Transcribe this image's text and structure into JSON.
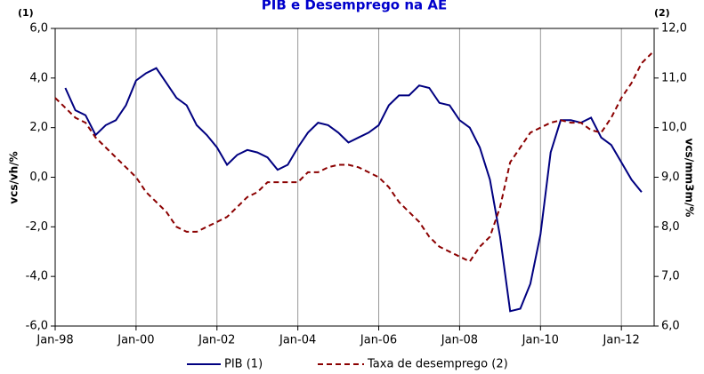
{
  "chart_data": {
    "type": "line",
    "title": "PIB e Desemprego na AE",
    "ylabel": "vcs/vh/%",
    "y2label": "vcs/mm3m/%",
    "y_note": "(1)",
    "y2_note": "(2)",
    "xlim": [
      1998,
      2012.81
    ],
    "xticks": [
      {
        "value": 1998,
        "label": "Jan-98"
      },
      {
        "value": 2000,
        "label": "Jan-00"
      },
      {
        "value": 2002,
        "label": "Jan-02"
      },
      {
        "value": 2004,
        "label": "Jan-04"
      },
      {
        "value": 2006,
        "label": "Jan-06"
      },
      {
        "value": 2008,
        "label": "Jan-08"
      },
      {
        "value": 2010,
        "label": "Jan-10"
      },
      {
        "value": 2012,
        "label": "Jan-12"
      }
    ],
    "ylim": [
      -6,
      6
    ],
    "yticks": [
      {
        "value": -6,
        "label": "-6,0"
      },
      {
        "value": -4,
        "label": "-4,0"
      },
      {
        "value": -2,
        "label": "-2,0"
      },
      {
        "value": 0,
        "label": "0,0"
      },
      {
        "value": 2,
        "label": "2,0"
      },
      {
        "value": 4,
        "label": "4,0"
      },
      {
        "value": 6,
        "label": "6,0"
      }
    ],
    "y2lim": [
      6,
      12
    ],
    "y2ticks": [
      {
        "value": 6,
        "label": "6,0"
      },
      {
        "value": 7,
        "label": "7,0"
      },
      {
        "value": 8,
        "label": "8,0"
      },
      {
        "value": 9,
        "label": "9,0"
      },
      {
        "value": 10,
        "label": "10,0"
      },
      {
        "value": 11,
        "label": "11,0"
      },
      {
        "value": 12,
        "label": "12,0"
      }
    ],
    "grid": "x",
    "series": [
      {
        "name": "PIB (1)",
        "color": "#000080",
        "axis": "y",
        "dashed": false,
        "x": [
          1998.25,
          1998.5,
          1998.75,
          1999,
          1999.25,
          1999.5,
          1999.75,
          2000,
          2000.25,
          2000.5,
          2000.75,
          2001,
          2001.25,
          2001.5,
          2001.75,
          2002,
          2002.25,
          2002.5,
          2002.75,
          2003,
          2003.25,
          2003.5,
          2003.75,
          2004,
          2004.25,
          2004.5,
          2004.75,
          2005,
          2005.25,
          2005.5,
          2005.75,
          2006,
          2006.25,
          2006.5,
          2006.75,
          2007,
          2007.25,
          2007.5,
          2007.75,
          2008,
          2008.25,
          2008.5,
          2008.75,
          2009,
          2009.25,
          2009.5,
          2009.75,
          2010,
          2010.25,
          2010.5,
          2010.75,
          2011,
          2011.25,
          2011.5,
          2011.75,
          2012,
          2012.25,
          2012.5
        ],
        "values": [
          3.6,
          2.7,
          2.5,
          1.7,
          2.1,
          2.3,
          2.9,
          3.9,
          4.2,
          4.4,
          3.8,
          3.2,
          2.9,
          2.1,
          1.7,
          1.2,
          0.5,
          0.9,
          1.1,
          1.0,
          0.8,
          0.3,
          0.5,
          1.2,
          1.8,
          2.2,
          2.1,
          1.8,
          1.4,
          1.6,
          1.8,
          2.1,
          2.9,
          3.3,
          3.3,
          3.7,
          3.6,
          3.0,
          2.9,
          2.3,
          2.0,
          1.2,
          -0.1,
          -2.4,
          -5.4,
          -5.3,
          -4.3,
          -2.3,
          1.0,
          2.3,
          2.3,
          2.2,
          2.4,
          1.6,
          1.3,
          0.6,
          -0.1,
          -0.6
        ]
      },
      {
        "name": "Taxa de desemprego (2)",
        "color": "#8b0000",
        "axis": "y2",
        "dashed": true,
        "x": [
          1998,
          1998.25,
          1998.5,
          1998.75,
          1999,
          1999.25,
          1999.5,
          1999.75,
          2000,
          2000.25,
          2000.5,
          2000.75,
          2001,
          2001.25,
          2001.5,
          2001.75,
          2002,
          2002.25,
          2002.5,
          2002.75,
          2003,
          2003.25,
          2003.5,
          2003.75,
          2004,
          2004.25,
          2004.5,
          2004.75,
          2005,
          2005.25,
          2005.5,
          2005.75,
          2006,
          2006.25,
          2006.5,
          2006.75,
          2007,
          2007.25,
          2007.5,
          2007.75,
          2008,
          2008.25,
          2008.5,
          2008.75,
          2009,
          2009.25,
          2009.5,
          2009.75,
          2010,
          2010.25,
          2010.5,
          2010.75,
          2011,
          2011.25,
          2011.5,
          2011.75,
          2012,
          2012.25,
          2012.5,
          2012.75
        ],
        "values": [
          10.6,
          10.4,
          10.2,
          10.1,
          9.8,
          9.6,
          9.4,
          9.2,
          9.0,
          8.7,
          8.5,
          8.3,
          8.0,
          7.9,
          7.9,
          8.0,
          8.1,
          8.2,
          8.4,
          8.6,
          8.7,
          8.9,
          8.9,
          8.9,
          8.9,
          9.1,
          9.1,
          9.2,
          9.25,
          9.25,
          9.2,
          9.1,
          9.0,
          8.8,
          8.5,
          8.3,
          8.1,
          7.8,
          7.6,
          7.5,
          7.4,
          7.3,
          7.6,
          7.8,
          8.4,
          9.3,
          9.6,
          9.9,
          10.0,
          10.1,
          10.15,
          10.1,
          10.1,
          9.95,
          9.9,
          10.2,
          10.6,
          10.9,
          11.3,
          11.5
        ]
      }
    ]
  }
}
